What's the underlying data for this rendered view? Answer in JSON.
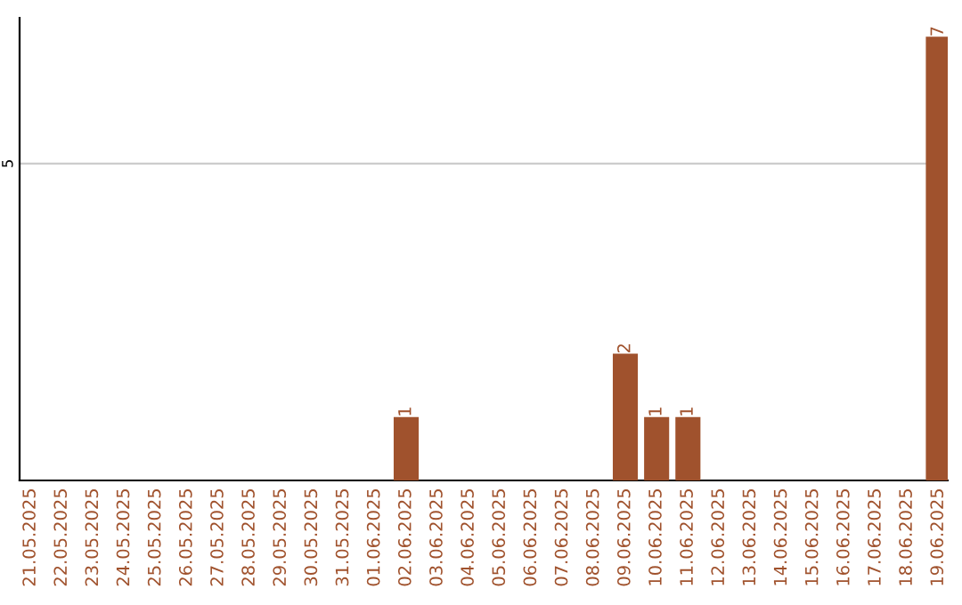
{
  "chart_data": {
    "type": "bar",
    "categories": [
      "21.05.2025",
      "22.05.2025",
      "23.05.2025",
      "24.05.2025",
      "25.05.2025",
      "26.05.2025",
      "27.05.2025",
      "28.05.2025",
      "29.05.2025",
      "30.05.2025",
      "31.05.2025",
      "01.06.2025",
      "02.06.2025",
      "03.06.2025",
      "04.06.2025",
      "05.06.2025",
      "06.06.2025",
      "07.06.2025",
      "08.06.2025",
      "09.06.2025",
      "10.06.2025",
      "11.06.2025",
      "12.06.2025",
      "13.06.2025",
      "14.06.2025",
      "15.06.2025",
      "16.06.2025",
      "17.06.2025",
      "18.06.2025",
      "19.06.2025"
    ],
    "values": [
      null,
      null,
      null,
      null,
      null,
      null,
      null,
      null,
      null,
      null,
      null,
      null,
      1,
      null,
      null,
      null,
      null,
      null,
      null,
      2,
      1,
      1,
      null,
      null,
      null,
      null,
      null,
      null,
      null,
      7
    ],
    "value_labels": [
      null,
      null,
      null,
      null,
      null,
      null,
      null,
      null,
      null,
      null,
      null,
      null,
      "1",
      null,
      null,
      null,
      null,
      null,
      null,
      "2",
      "1",
      "1",
      null,
      null,
      null,
      null,
      null,
      null,
      null,
      "7"
    ],
    "ylim": [
      0,
      7.3
    ],
    "color": "#a0522d",
    "ref_lines": [
      {
        "axis": "y",
        "value": 5,
        "label": "5",
        "color": "#cccccc"
      }
    ],
    "legend": false
  }
}
